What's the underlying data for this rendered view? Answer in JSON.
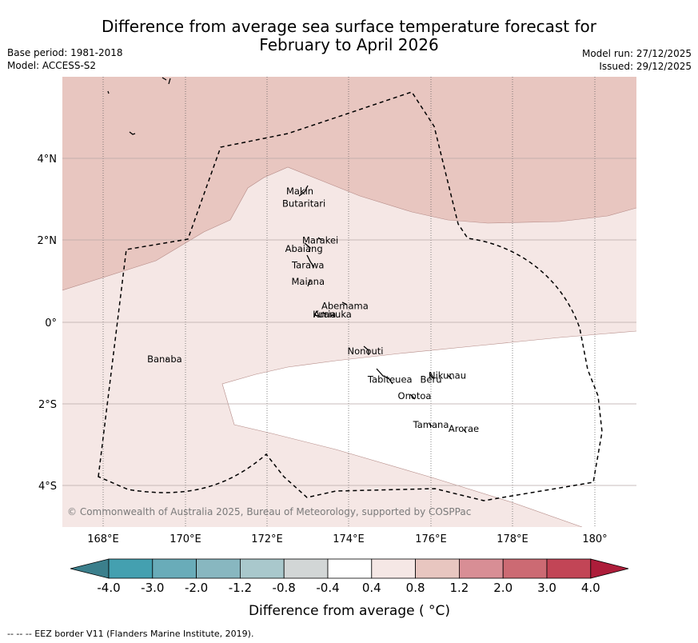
{
  "title": {
    "line1": "Difference from average sea surface temperature forecast for",
    "line2": "February to April 2026"
  },
  "meta_left": {
    "base_period": "Base period: 1981-2018",
    "model": "Model: ACCESS-S2"
  },
  "meta_right": {
    "model_run": "Model run: 27/12/2025",
    "issued": "Issued: 29/12/2025"
  },
  "axes": {
    "lon_labels": [
      "168°E",
      "170°E",
      "172°E",
      "174°E",
      "176°E",
      "178°E",
      "180°"
    ],
    "lat_labels": [
      "4°N",
      "2°N",
      "0°",
      "2°S",
      "4°S"
    ],
    "lon_range": [
      167,
      181
    ],
    "lat_range": [
      -5,
      6
    ]
  },
  "places": [
    {
      "name": "Makin",
      "lon": 172.8,
      "lat": 3.2
    },
    {
      "name": "Butaritari",
      "lon": 172.9,
      "lat": 2.9
    },
    {
      "name": "Marakei",
      "lon": 173.3,
      "lat": 2.0
    },
    {
      "name": "Abaiang",
      "lon": 172.9,
      "lat": 1.8
    },
    {
      "name": "Tarawa",
      "lon": 173.0,
      "lat": 1.4
    },
    {
      "name": "Maiana",
      "lon": 173.0,
      "lat": 1.0
    },
    {
      "name": "Abemama",
      "lon": 173.9,
      "lat": 0.4
    },
    {
      "name": "Kuria",
      "lon": 173.4,
      "lat": 0.2
    },
    {
      "name": "Aranuka",
      "lon": 173.6,
      "lat": 0.2
    },
    {
      "name": "Nonouti",
      "lon": 174.4,
      "lat": -0.7
    },
    {
      "name": "Banaba",
      "lon": 169.5,
      "lat": -0.9
    },
    {
      "name": "Beru",
      "lon": 176.0,
      "lat": -1.4
    },
    {
      "name": "Nikunau",
      "lon": 176.4,
      "lat": -1.3
    },
    {
      "name": "Tabiteuea",
      "lon": 175.0,
      "lat": -1.4
    },
    {
      "name": "Onotoa",
      "lon": 175.6,
      "lat": -1.8
    },
    {
      "name": "Tamana",
      "lon": 176.0,
      "lat": -2.5
    },
    {
      "name": "Arorae",
      "lon": 176.8,
      "lat": -2.6
    }
  ],
  "colorbar": {
    "labels": [
      "-4.0",
      "-3.0",
      "-2.0",
      "-1.2",
      "-0.8",
      "-0.4",
      "0.4",
      "0.8",
      "1.2",
      "2.0",
      "3.0",
      "4.0"
    ],
    "colors": [
      "#3b7f8c",
      "#44a0b0",
      "#69acb9",
      "#88b7c0",
      "#a9c8cc",
      "#d2d6d6",
      "#ffffff",
      "#f5e7e5",
      "#e8c6c0",
      "#d88e95",
      "#cc6a73",
      "#c24556",
      "#ad1d3a"
    ],
    "title": "Difference from average ( °C)"
  },
  "legend": {
    "map_fills": [
      "#e8c6c0",
      "#f5e7e5",
      "#ffffff"
    ]
  },
  "credit": "© Commonwealth of Australia 2025, Bureau of Meteorology, supported by COSPPac",
  "footer": "--  --  -- EEZ border V11 (Flanders Marine Institute, 2019)."
}
